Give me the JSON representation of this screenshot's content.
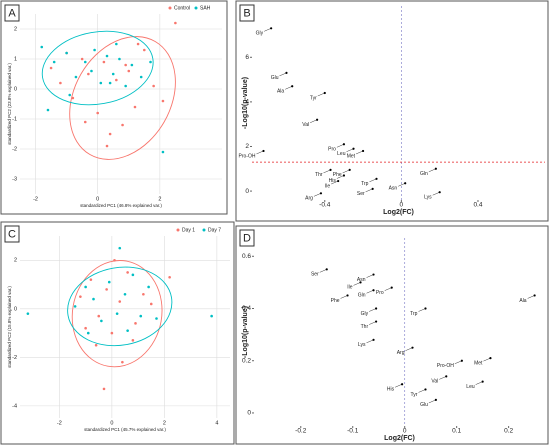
{
  "chart_data": [
    {
      "panel": "A",
      "type": "scatter",
      "x_label": "standardized PC1 (46.8% explained var.)",
      "y_label": "standardized PC2 (23.8% explained var.)",
      "xlim": [
        -2.5,
        4
      ],
      "ylim": [
        -3.5,
        2.5
      ],
      "xticks": [
        -2,
        0,
        2
      ],
      "yticks": [
        -3,
        -2,
        -1,
        0,
        1,
        2
      ],
      "grid": true,
      "legend": "top-right",
      "series": [
        {
          "name": "Control",
          "color": "#f8766d",
          "x": [
            -1.5,
            -1.2,
            -0.8,
            -0.5,
            -0.3,
            0,
            0.2,
            0.4,
            0.6,
            0.8,
            1,
            1.2,
            1.5,
            1.8,
            2.1,
            -0.4,
            0.3,
            0.9,
            1.3,
            2.5,
            -1
          ],
          "values": [
            0.7,
            0.2,
            -0.3,
            1,
            0.5,
            -0.8,
            0.9,
            -1.5,
            0.3,
            -1.2,
            0.6,
            -0.6,
            1.3,
            0.1,
            -0.4,
            -1.1,
            -1.9,
            0.8,
            1.5,
            2.2,
            1.2
          ],
          "ellipse": {
            "cx": 0.8,
            "cy": -0.3,
            "rx": 2.1,
            "ry": 1.6,
            "angle": -60
          }
        },
        {
          "name": "SAH",
          "color": "#00bfc4",
          "x": [
            -1.8,
            -1.4,
            -1,
            -0.7,
            -0.4,
            -0.1,
            0.1,
            0.3,
            0.5,
            0.7,
            0.9,
            1.1,
            1.4,
            -0.9,
            -0.2,
            0.6,
            1.7,
            2.1,
            -1.6,
            0.4
          ],
          "values": [
            1.4,
            0.9,
            1.2,
            0.4,
            0.9,
            1.3,
            0.2,
            1.1,
            0.5,
            1,
            0.1,
            0.8,
            0.4,
            -0.2,
            0.6,
            1.5,
            0.9,
            -2.1,
            -0.7,
            0.2
          ],
          "ellipse": {
            "cx": 0,
            "cy": 0.7,
            "rx": 1.8,
            "ry": 1.2,
            "angle": -10
          }
        }
      ]
    },
    {
      "panel": "B",
      "type": "labeled-scatter",
      "x_label": "Log2(FC)",
      "y_label": "-Log10(p-value)",
      "xlim": [
        -0.78,
        0.75
      ],
      "ylim": [
        -0.4,
        8.3
      ],
      "xticks": [
        -0.4,
        0.0,
        0.4
      ],
      "yticks": [
        0,
        2,
        4,
        6
      ],
      "color": "#000000",
      "threshold": {
        "y": 1.3,
        "color": "#e31a1c"
      },
      "vline": 0,
      "labels": [
        "Gly",
        "Glu",
        "Ala",
        "Tyr",
        "Val",
        "Pro",
        "Leu",
        "Met",
        "Pro-OH",
        "Thr",
        "Phe",
        "His",
        "Ile",
        "Trp",
        "Asn",
        "Ser",
        "Arg",
        "Lys",
        "Gln"
      ],
      "x": [
        -0.68,
        -0.6,
        -0.57,
        -0.4,
        -0.44,
        -0.3,
        -0.25,
        -0.2,
        -0.72,
        -0.37,
        -0.27,
        -0.3,
        -0.33,
        -0.13,
        0.02,
        -0.15,
        -0.42,
        0.2,
        0.18
      ],
      "values": [
        7.3,
        5.3,
        4.7,
        4.4,
        3.2,
        2.1,
        1.9,
        1.8,
        1.8,
        0.95,
        0.95,
        0.7,
        0.45,
        0.55,
        0.35,
        0.1,
        -0.1,
        -0.05,
        1
      ]
    },
    {
      "panel": "C",
      "type": "scatter",
      "x_label": "standardized PC1 (45.7% explained var.)",
      "y_label": "standardized PC2 (15.8% explained var.)",
      "xlim": [
        -3.5,
        4.5
      ],
      "ylim": [
        -4.5,
        3
      ],
      "xticks": [
        -2,
        0,
        2,
        4
      ],
      "yticks": [
        -4,
        -2,
        0,
        2
      ],
      "grid": true,
      "legend": "top-right",
      "series": [
        {
          "name": "Day 1",
          "color": "#f8766d",
          "x": [
            -1.2,
            -0.8,
            -0.5,
            -0.2,
            0,
            0.3,
            0.6,
            0.9,
            1.2,
            -0.6,
            0.1,
            0.8,
            1.5,
            -1,
            0.4,
            2.2,
            -0.3
          ],
          "values": [
            0.5,
            1.2,
            -0.3,
            0.8,
            -1,
            0.3,
            1.5,
            -0.6,
            0.6,
            -1.5,
            2,
            -1.3,
            0.2,
            -0.8,
            -2.2,
            1.3,
            -3.3
          ],
          "ellipse": {
            "cx": 0.2,
            "cy": -0.2,
            "rx": 1.7,
            "ry": 2.2,
            "angle": 10
          }
        },
        {
          "name": "Day 7",
          "color": "#00bfc4",
          "x": [
            -1.4,
            -1,
            -0.7,
            -0.4,
            -0.1,
            0.2,
            0.5,
            0.8,
            1.1,
            1.4,
            -0.9,
            0.6,
            1.7,
            -3.2,
            3.8,
            0.3
          ],
          "values": [
            0.1,
            0.9,
            0.4,
            -0.5,
            1.1,
            -0.2,
            0.6,
            1.4,
            -0.3,
            0.9,
            -1,
            -0.9,
            -0.4,
            -0.2,
            -0.3,
            2.5
          ],
          "ellipse": {
            "cx": 0.3,
            "cy": 0.1,
            "rx": 2,
            "ry": 1.6,
            "angle": -10
          }
        }
      ]
    },
    {
      "panel": "D",
      "type": "labeled-scatter",
      "x_label": "Log2(FC)",
      "y_label": "-Log10(p-value)",
      "xlim": [
        -0.29,
        0.27
      ],
      "ylim": [
        -0.05,
        0.67
      ],
      "xticks": [
        -0.2,
        -0.1,
        0.0,
        0.1,
        0.2
      ],
      "yticks": [
        0.0,
        0.2,
        0.4,
        0.6
      ],
      "color": "#000000",
      "vline": 0,
      "labels": [
        "Ser",
        "Asn",
        "Ile",
        "Gln",
        "Pro",
        "Phe",
        "Gly",
        "Thr",
        "Lys",
        "Trp",
        "Ala",
        "Arg",
        "Met",
        "Pro-OH",
        "Val",
        "Leu",
        "His",
        "Tyr",
        "Glu"
      ],
      "x": [
        -0.15,
        -0.06,
        -0.085,
        -0.06,
        -0.025,
        -0.11,
        -0.055,
        -0.055,
        -0.06,
        0.04,
        0.25,
        0.015,
        0.165,
        0.11,
        0.08,
        0.15,
        -0.005,
        0.04,
        0.06
      ],
      "values": [
        0.55,
        0.53,
        0.5,
        0.47,
        0.48,
        0.45,
        0.4,
        0.35,
        0.28,
        0.4,
        0.45,
        0.25,
        0.21,
        0.2,
        0.14,
        0.12,
        0.11,
        0.09,
        0.05
      ]
    }
  ]
}
